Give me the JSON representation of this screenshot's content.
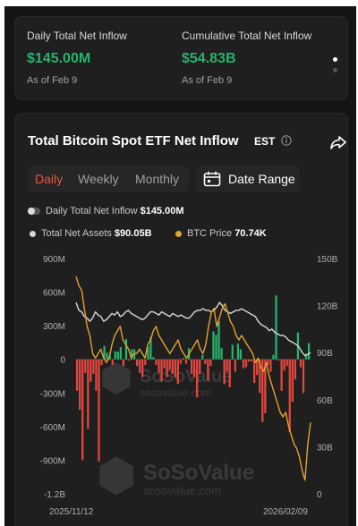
{
  "summary": {
    "daily": {
      "label": "Daily Total Net Inflow",
      "value": "$145.00M",
      "date": "As of Feb 9"
    },
    "cumulative": {
      "label": "Cumulative Total Net Inflow",
      "value": "$54.83B",
      "date": "As of Feb 9"
    }
  },
  "header": {
    "title": "Total Bitcoin Spot ETF Net Inflow",
    "timezone": "EST"
  },
  "tabs": {
    "daily": "Daily",
    "weekly": "Weekly",
    "monthly": "Monthly",
    "active": "Daily"
  },
  "date_range_label": "Date Range",
  "legend": {
    "inflow": {
      "label": "Daily Total Net Inflow",
      "value": "$145.00M"
    },
    "assets": {
      "label": "Total Net Assets",
      "value": "$90.05B"
    },
    "btc": {
      "label": "BTC Price",
      "value": "70.74K"
    }
  },
  "watermark": {
    "brand": "SoSoValue",
    "site": "sosovalue.com"
  },
  "colors": {
    "positive": "#26b36b",
    "negative": "#e5483f",
    "assets_line": "#d6d6d6",
    "btc_line": "#e3a32f",
    "accent": "#e2593f"
  },
  "chart_data": {
    "type": "bar",
    "x_start": "2025/11/12",
    "x_end": "2026/02/09",
    "left_axis": {
      "ticks": [
        "900M",
        "600M",
        "300M",
        "0",
        "-300M",
        "-600M",
        "-900M",
        "-1.2B"
      ],
      "ylim_millions": [
        -1200,
        900
      ]
    },
    "right_axis": {
      "ticks": [
        "150B",
        "120B",
        "90B",
        "60B",
        "30B",
        "0"
      ],
      "ylim_billions": [
        0,
        150
      ]
    },
    "series": [
      {
        "name": "Daily Total Net Inflow",
        "unit": "M USD",
        "values": [
          -280,
          -450,
          -900,
          -120,
          -620,
          -200,
          -130,
          -280,
          -910,
          -50,
          120,
          60,
          30,
          -50,
          70,
          70,
          110,
          -60,
          180,
          -10,
          90,
          90,
          -60,
          -120,
          -160,
          -50,
          110,
          200,
          20,
          -50,
          -120,
          -200,
          -80,
          -160,
          -90,
          -130,
          -160,
          -220,
          -40,
          10,
          -40,
          100,
          -130,
          -160,
          -340,
          -130,
          40,
          -40,
          -190,
          -60,
          250,
          220,
          340,
          100,
          -220,
          -110,
          -250,
          130,
          -110,
          140,
          90,
          -80,
          -70,
          -20,
          -20,
          -210,
          -140,
          -300,
          -560,
          -480,
          -50,
          -110,
          40,
          570,
          -10,
          -280,
          -100,
          -60,
          -650,
          -380,
          -180,
          240,
          -70,
          -300,
          50,
          145
        ]
      },
      {
        "name": "Total Net Assets",
        "unit": "B USD",
        "values": [
          122,
          117,
          116,
          113,
          112,
          110,
          112,
          116,
          114,
          113,
          110,
          111,
          113,
          115,
          114,
          116,
          113,
          114,
          116,
          117,
          115,
          114,
          113,
          112,
          111,
          112,
          114,
          116,
          116,
          115,
          114,
          116,
          115,
          114,
          113,
          115,
          114,
          113,
          114,
          113,
          112,
          112,
          114,
          116,
          117,
          117,
          118,
          117,
          117,
          116,
          117,
          119,
          122,
          120,
          117,
          116,
          115,
          116,
          117,
          117,
          118,
          117,
          116,
          115,
          114,
          113,
          110,
          108,
          107,
          106,
          104,
          105,
          103,
          102,
          101,
          101,
          100,
          98,
          97,
          96,
          95,
          93,
          90,
          88,
          89,
          90.05
        ]
      },
      {
        "name": "BTC Price",
        "unit": "K USD",
        "values": [
          103,
          101,
          100,
          96,
          92,
          90,
          86,
          85,
          86,
          87,
          85,
          84,
          85,
          88,
          90,
          91,
          92,
          89,
          88,
          87,
          85,
          86,
          86,
          87,
          86,
          85,
          88,
          89,
          91,
          92,
          90,
          89,
          88,
          87,
          86,
          87,
          88,
          89,
          87,
          86,
          85,
          86,
          87,
          88,
          89,
          87,
          86,
          88,
          92,
          95,
          96,
          92,
          94,
          96,
          97,
          95,
          93,
          92,
          90,
          89,
          90,
          89,
          88,
          87,
          86,
          84,
          85,
          83,
          82,
          84,
          81,
          79,
          77,
          75,
          73,
          72,
          73,
          70,
          68,
          66,
          65,
          63,
          60,
          58,
          66,
          70.74
        ]
      }
    ]
  }
}
